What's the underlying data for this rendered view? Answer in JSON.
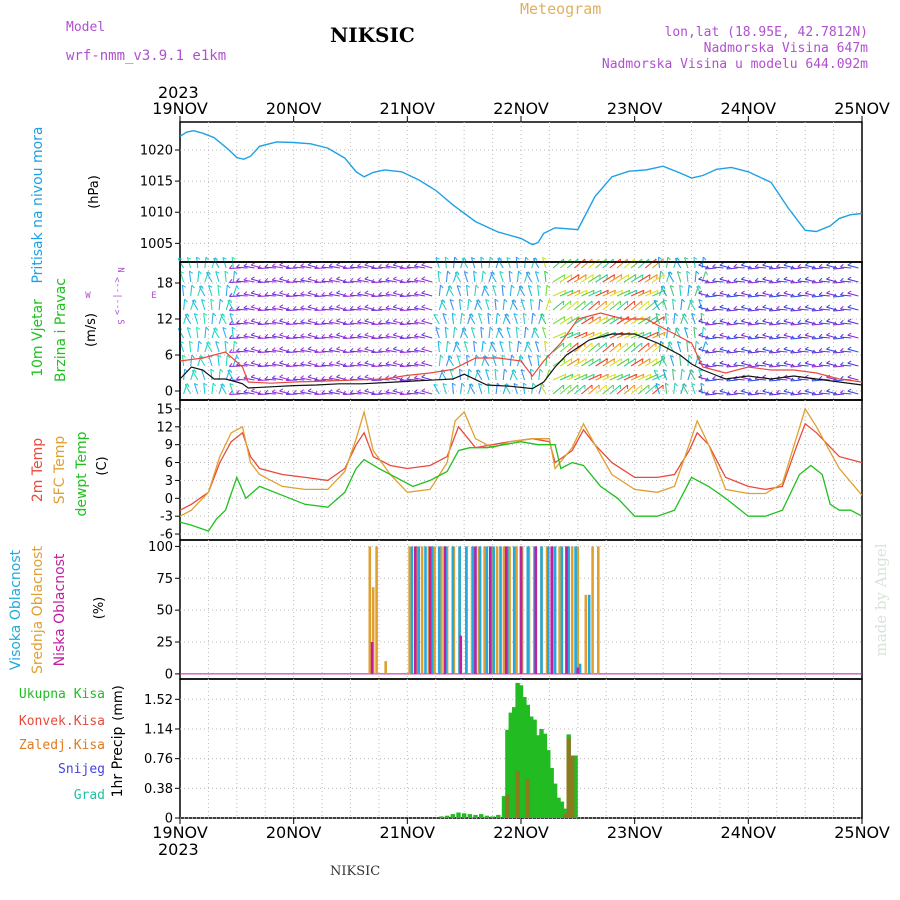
{
  "header": {
    "model_label": "Model",
    "model_name": "wrf-nmm_v3.9.1 e1km",
    "station": "NIKSIC",
    "product": "Meteogram",
    "coords": "lon,lat (18.95E, 42.7812N)",
    "elevation": "Nadmorska Visina 647m",
    "model_elevation": "Nadmorska Visina u modelu 644.092m"
  },
  "footer": {
    "station": "NIKSIC",
    "credit": "made by Angel"
  },
  "time_axis": {
    "year": "2023",
    "ticks": [
      "19NOV",
      "20NOV",
      "21NOV",
      "22NOV",
      "23NOV",
      "24NOV",
      "25NOV"
    ]
  },
  "colors": {
    "pressure": "#1ea0e6",
    "t2m": "#e84a3c",
    "tsfc": "#e0a030",
    "dewpoint": "#20c020",
    "high_cloud": "#22aadd",
    "mid_cloud": "#e0a030",
    "low_cloud": "#c020a0",
    "precip_total": "#22bb22",
    "precip_conv": "#e84a3c",
    "precip_grid": "#e07b20",
    "snow": "#4444dd",
    "graupel": "#22c0a0",
    "header_purple": "#b050d0",
    "header_orange": "#e0b060"
  },
  "chart_data": [
    {
      "id": "pressure",
      "type": "line",
      "ylabel": "Pritisak na nivou mora",
      "unit": "(hPa)",
      "yticks": [
        1005,
        1010,
        1015,
        1020
      ],
      "ylim": [
        1002,
        1024.5
      ],
      "series": [
        {
          "name": "Pritisak na nivou mora",
          "x": [
            0,
            0.06,
            0.12,
            0.2,
            0.3,
            0.42,
            0.5,
            0.56,
            0.62,
            0.7,
            0.85,
            1.0,
            1.15,
            1.3,
            1.45,
            1.55,
            1.62,
            1.7,
            1.8,
            1.95,
            2.1,
            2.25,
            2.4,
            2.6,
            2.8,
            3.0,
            3.1,
            3.15,
            3.2,
            3.3,
            3.5,
            3.65,
            3.8,
            3.95,
            4.1,
            4.25,
            4.4,
            4.5,
            4.6,
            4.72,
            4.85,
            5.0,
            5.2,
            5.35,
            5.5,
            5.6,
            5.72,
            5.8,
            5.9,
            6.0
          ],
          "values": [
            1022.2,
            1022.9,
            1023.1,
            1022.7,
            1022.0,
            1020.2,
            1018.8,
            1018.5,
            1019.0,
            1020.6,
            1021.3,
            1021.2,
            1021.0,
            1020.3,
            1018.7,
            1016.5,
            1015.7,
            1016.4,
            1016.8,
            1016.5,
            1015.2,
            1013.5,
            1011.2,
            1008.5,
            1006.8,
            1005.8,
            1004.8,
            1005.1,
            1006.6,
            1007.5,
            1007.2,
            1012.5,
            1015.7,
            1016.6,
            1016.8,
            1017.4,
            1016.3,
            1015.5,
            1015.9,
            1016.9,
            1017.2,
            1016.5,
            1014.8,
            1010.7,
            1007.1,
            1006.9,
            1007.8,
            1009.0,
            1009.6,
            1009.8
          ]
        }
      ]
    },
    {
      "id": "wind",
      "type": "line",
      "ylabel": "10m Vjetar",
      "ylabel2": "Brzina i Pravac",
      "unit": "(m/s)",
      "legend": [
        "N",
        "W",
        "<--|-->",
        "E",
        "S"
      ],
      "yticks": [
        0,
        6,
        12,
        18
      ],
      "ylim": [
        -1.5,
        21.5
      ],
      "series": [
        {
          "name": "wind speed",
          "x": [
            0,
            0.1,
            0.2,
            0.3,
            0.4,
            0.5,
            0.55,
            0.6,
            0.8,
            1.0,
            1.2,
            1.4,
            1.6,
            1.8,
            2.0,
            2.2,
            2.4,
            2.5,
            2.7,
            2.9,
            3.1,
            3.2,
            3.3,
            3.4,
            3.6,
            3.8,
            4.0,
            4.2,
            4.4,
            4.5,
            4.6,
            4.8,
            5.0,
            5.2,
            5.4,
            5.6,
            5.8,
            6.0
          ],
          "values": [
            2,
            4,
            3.5,
            2,
            2,
            1.5,
            1.2,
            0.5,
            0.7,
            0.9,
            1.0,
            1.2,
            1.2,
            1.4,
            1.6,
            1.8,
            2.0,
            2.8,
            1.0,
            0.8,
            0.4,
            1.5,
            4,
            6,
            8.5,
            9.5,
            9.5,
            8,
            6,
            4.5,
            3.5,
            2.0,
            2.5,
            2.0,
            2.5,
            2.0,
            1.5,
            1.0
          ]
        },
        {
          "name": "wind gust",
          "x": [
            0,
            0.2,
            0.4,
            0.55,
            0.6,
            0.8,
            1.0,
            1.2,
            1.5,
            1.8,
            2.0,
            2.2,
            2.4,
            2.6,
            2.8,
            3.0,
            3.1,
            3.2,
            3.35,
            3.5,
            3.7,
            3.9,
            4.1,
            4.3,
            4.5,
            4.6,
            4.8,
            5.0,
            5.2,
            5.4,
            5.6,
            5.8,
            6.0
          ],
          "values": [
            5,
            5.5,
            6.5,
            4,
            1.5,
            1.3,
            1.5,
            1.6,
            1.8,
            2.0,
            2.6,
            3.0,
            3.6,
            5.5,
            5.5,
            5.0,
            2.5,
            5,
            8,
            12,
            13,
            12,
            12,
            10,
            8,
            4,
            3,
            4,
            3.5,
            3.5,
            3.0,
            2.0,
            1.5
          ]
        }
      ]
    },
    {
      "id": "temperature",
      "type": "line",
      "ylabel": "2m Temp",
      "ylabel2": "SFC Temp",
      "ylabel3": "dewpt Temp",
      "unit": "(C)",
      "yticks": [
        -6,
        -3,
        0,
        3,
        6,
        9,
        12,
        15
      ],
      "ylim": [
        -7,
        16.5
      ],
      "series": [
        {
          "name": "2m Temp",
          "x": [
            0,
            0.1,
            0.25,
            0.35,
            0.45,
            0.55,
            0.62,
            0.7,
            0.9,
            1.1,
            1.3,
            1.45,
            1.55,
            1.62,
            1.7,
            1.85,
            2.0,
            2.2,
            2.35,
            2.45,
            2.6,
            2.75,
            2.9,
            3.1,
            3.25,
            3.3,
            3.45,
            3.55,
            3.65,
            3.8,
            4.0,
            4.2,
            4.35,
            4.48,
            4.55,
            4.65,
            4.8,
            5.0,
            5.15,
            5.3,
            5.42,
            5.5,
            5.6,
            5.8,
            6.0
          ],
          "values": [
            -2,
            -1,
            1,
            6,
            9.5,
            11,
            7,
            5,
            4,
            3.5,
            3,
            5,
            9,
            11,
            7,
            5.5,
            5,
            5.5,
            7,
            12,
            8.5,
            9,
            9.5,
            10,
            9.5,
            6,
            8,
            11.5,
            9,
            6,
            3.5,
            3.5,
            4,
            8,
            11,
            9,
            3.5,
            2,
            1.5,
            2,
            8.5,
            12.5,
            11,
            7,
            6
          ]
        },
        {
          "name": "SFC Temp",
          "x": [
            0,
            0.1,
            0.25,
            0.35,
            0.45,
            0.55,
            0.62,
            0.7,
            0.9,
            1.1,
            1.3,
            1.45,
            1.55,
            1.62,
            1.7,
            1.85,
            2.0,
            2.2,
            2.35,
            2.42,
            2.5,
            2.6,
            2.75,
            2.9,
            3.1,
            3.25,
            3.3,
            3.45,
            3.55,
            3.65,
            3.8,
            4.0,
            4.2,
            4.35,
            4.48,
            4.55,
            4.65,
            4.8,
            5.0,
            5.15,
            5.3,
            5.42,
            5.5,
            5.6,
            5.8,
            6.0
          ],
          "values": [
            -3,
            -2,
            1,
            7,
            11,
            12,
            6,
            4,
            2,
            1.5,
            1.5,
            4.5,
            10,
            14.5,
            8,
            4,
            1,
            1.5,
            6,
            13,
            14.5,
            10,
            8.5,
            9.5,
            10,
            10,
            5,
            8.5,
            12.5,
            9,
            4,
            1.5,
            1,
            2,
            9,
            13,
            9,
            1.5,
            0.8,
            0.8,
            2.5,
            10,
            15,
            12,
            5,
            0.5
          ]
        },
        {
          "name": "dewpt Temp",
          "x": [
            0,
            0.1,
            0.25,
            0.32,
            0.4,
            0.5,
            0.58,
            0.7,
            0.9,
            1.1,
            1.3,
            1.45,
            1.55,
            1.62,
            1.75,
            1.9,
            2.05,
            2.2,
            2.35,
            2.45,
            2.55,
            2.7,
            2.85,
            3.0,
            3.15,
            3.3,
            3.35,
            3.45,
            3.55,
            3.7,
            3.85,
            4.0,
            4.2,
            4.35,
            4.5,
            4.65,
            4.8,
            5.0,
            5.15,
            5.3,
            5.45,
            5.55,
            5.65,
            5.72,
            5.8,
            5.9,
            6.0
          ],
          "values": [
            -4,
            -4.5,
            -5.5,
            -3.5,
            -2,
            3.5,
            0,
            2,
            0.5,
            -1,
            -1.5,
            1,
            5,
            6.5,
            5,
            3.5,
            2,
            3,
            4.5,
            8,
            8.5,
            8.5,
            9,
            9.5,
            9,
            9,
            5,
            6,
            5.5,
            2,
            0,
            -3,
            -3,
            -2,
            3.5,
            2,
            0,
            -3,
            -3,
            -2,
            4,
            5.5,
            4,
            -1,
            -2,
            -2,
            -3
          ]
        }
      ]
    },
    {
      "id": "cloud",
      "type": "bar",
      "ylabel": "Visoka Oblacnost",
      "ylabel2": "Srednja Oblacnost",
      "ylabel3": "Niska Oblacnost",
      "unit": "(%)",
      "yticks": [
        0,
        25,
        50,
        75,
        100
      ],
      "ylim": [
        -4,
        105
      ],
      "series": [
        {
          "name": "Srednja Oblacnost",
          "x": [
            1.67,
            1.7,
            1.73,
            1.81,
            2.02,
            2.08,
            2.13,
            2.19,
            2.24,
            2.3,
            2.35,
            2.41,
            2.46,
            2.52,
            2.57,
            2.63,
            2.68,
            2.74,
            2.79,
            2.85,
            2.9,
            2.96,
            3.01,
            3.07,
            3.12,
            3.18,
            3.23,
            3.29,
            3.34,
            3.4,
            3.45,
            3.5,
            3.57,
            3.63,
            3.68
          ],
          "values": [
            100,
            68,
            100,
            10,
            100,
            100,
            100,
            100,
            100,
            100,
            100,
            100,
            100,
            100,
            100,
            100,
            100,
            100,
            100,
            100,
            100,
            100,
            100,
            100,
            100,
            100,
            100,
            100,
            100,
            100,
            100,
            100,
            62,
            100,
            100
          ]
        },
        {
          "name": "Visoka Oblacnost",
          "x": [
            2.04,
            2.1,
            2.16,
            2.22,
            2.28,
            2.34,
            2.4,
            2.46,
            2.52,
            2.58,
            2.64,
            2.7,
            2.76,
            2.82,
            2.88,
            2.94,
            3.0,
            3.06,
            3.12,
            3.18,
            3.24,
            3.3,
            3.36,
            3.42,
            3.48,
            3.52,
            3.6
          ],
          "values": [
            100,
            100,
            100,
            100,
            100,
            100,
            100,
            100,
            100,
            100,
            100,
            100,
            100,
            100,
            100,
            100,
            100,
            100,
            100,
            100,
            100,
            100,
            100,
            100,
            100,
            8,
            62
          ]
        },
        {
          "name": "Niska Oblacnost",
          "x": [
            1.69,
            2.07,
            2.2,
            2.33,
            2.47,
            2.6,
            2.73,
            2.87,
            3.0,
            3.13,
            3.27,
            3.4,
            3.5
          ],
          "values": [
            25,
            100,
            100,
            100,
            30,
            100,
            100,
            100,
            100,
            100,
            100,
            100,
            5
          ]
        }
      ]
    },
    {
      "id": "precip",
      "type": "bar",
      "ylabel": "1hr Precip",
      "unit": "(mm)",
      "legend": [
        "Ukupna Kisa",
        "Konvek.Kisa",
        "Zaledj.Kisa",
        "Snijeg",
        "Grad"
      ],
      "yticks": [
        0,
        0.38,
        0.76,
        1.14,
        1.52
      ],
      "ylim": [
        0,
        1.78
      ],
      "series": [
        {
          "name": "Ukupna Kisa",
          "x": [
            2.3,
            2.35,
            2.4,
            2.45,
            2.5,
            2.55,
            2.6,
            2.65,
            2.7,
            2.75,
            2.8,
            2.85,
            2.88,
            2.91,
            2.94,
            2.97,
            3.0,
            3.03,
            3.06,
            3.09,
            3.12,
            3.15,
            3.18,
            3.21,
            3.24,
            3.27,
            3.3,
            3.33,
            3.36,
            3.39,
            3.42,
            3.45,
            3.48
          ],
          "values": [
            0.02,
            0.03,
            0.05,
            0.07,
            0.06,
            0.05,
            0.04,
            0.05,
            0.03,
            0.02,
            0.04,
            0.28,
            1.13,
            1.35,
            1.42,
            1.73,
            1.7,
            1.55,
            1.45,
            1.3,
            1.26,
            1.06,
            1.14,
            1.08,
            0.87,
            0.64,
            0.44,
            0.26,
            0.21,
            0.12,
            1.07,
            0.66,
            0.8
          ]
        },
        {
          "name": "Zaledj.Kisa",
          "x": [
            2.88,
            2.97,
            3.06,
            3.39,
            3.42,
            3.45
          ],
          "values": [
            0.3,
            0.6,
            0.5,
            0.05,
            1.02,
            0.8
          ]
        }
      ]
    }
  ]
}
